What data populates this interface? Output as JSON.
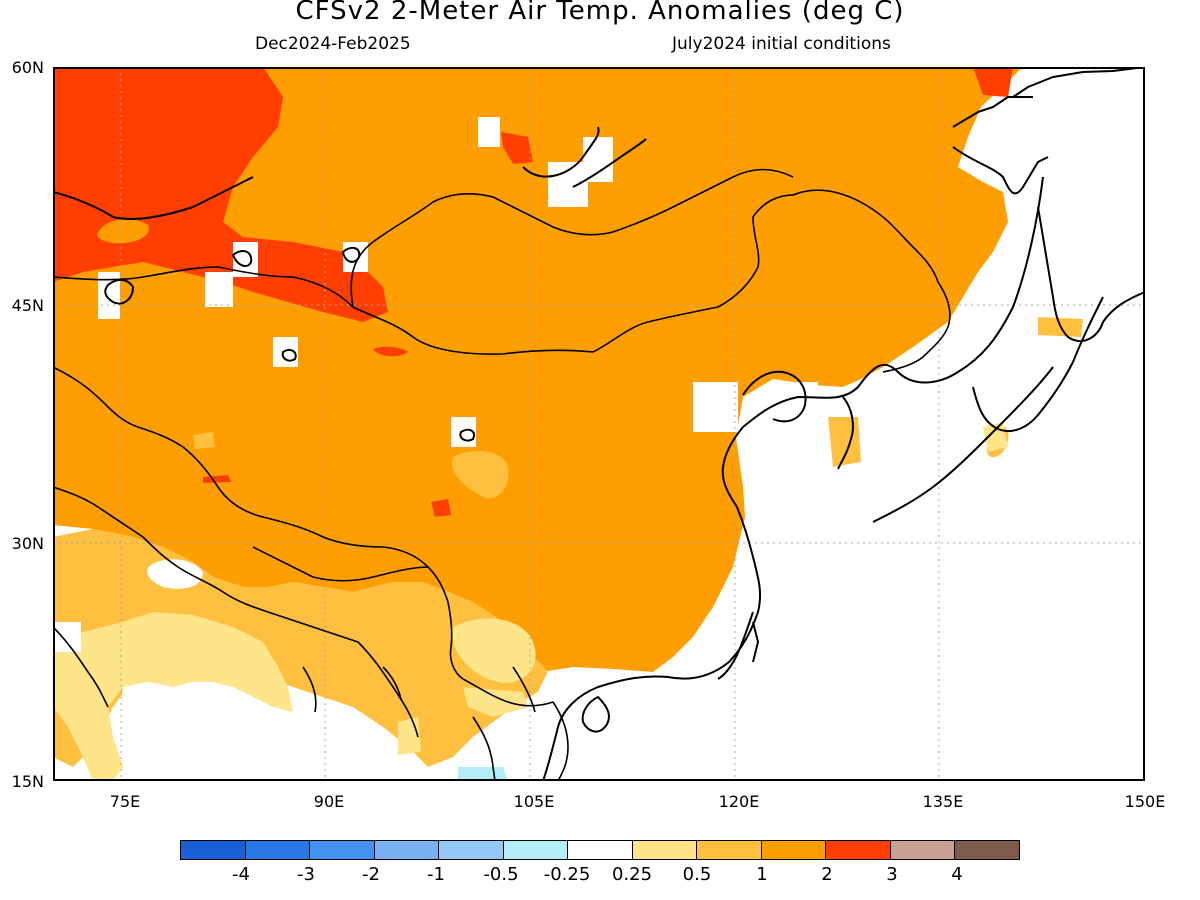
{
  "header": {
    "title": "CFSv2 2-Meter Air Temp. Anomalies (deg C)",
    "period": "Dec2024-Feb2025",
    "initial": "July2024 initial conditions"
  },
  "map": {
    "lat_ticks": [
      "60N",
      "45N",
      "30N",
      "15N"
    ],
    "lon_ticks": [
      "75E",
      "90E",
      "105E",
      "120E",
      "135E",
      "150E"
    ],
    "extent": {
      "lon": [
        70,
        150
      ],
      "lat": [
        15,
        60
      ]
    },
    "regions": [
      {
        "name": "west-siberia",
        "anomaly": "2 to 3"
      },
      {
        "name": "mongolia-north-china",
        "anomaly": "1 to 2"
      },
      {
        "name": "tibet-west-china",
        "anomaly": "1 to 2"
      },
      {
        "name": "india-north",
        "anomaly": "0.5 to 1"
      },
      {
        "name": "india-south",
        "anomaly": "-0.25 to 0.25"
      },
      {
        "name": "japan-korea-ocean",
        "anomaly": "-0.25 to 0.25"
      }
    ]
  },
  "colorbar": {
    "colors": [
      "#1a5fd6",
      "#2a78e6",
      "#4491f0",
      "#78b1f2",
      "#96c8f5",
      "#b4ecf8",
      "#ffffff",
      "#ffe58a",
      "#ffbf3f",
      "#ff9e00",
      "#ff3e00",
      "#c8a096",
      "#7d5a4b"
    ],
    "labels": [
      "-4",
      "-3",
      "-2",
      "-1",
      "-0.5",
      "-0.25",
      "0.25",
      "0.5",
      "1",
      "2",
      "3",
      "4"
    ]
  }
}
